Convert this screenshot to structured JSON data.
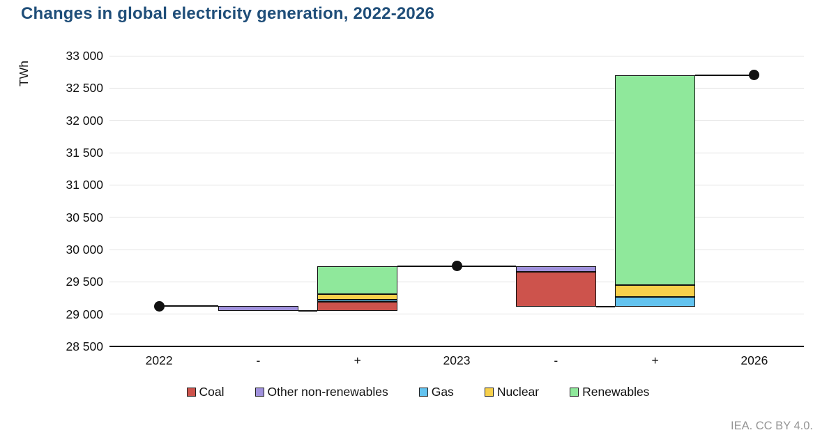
{
  "attribution": "IEA. CC BY 4.0.",
  "colors": {
    "title": "#1f4e79",
    "axis": "#000000",
    "gridline": "#e2e2e2",
    "marker": "#111111",
    "segment_border": "#111111",
    "attribution": "#959595"
  },
  "chart_data": {
    "type": "bar",
    "subtype": "stacked-waterfall",
    "title": "Changes in global electricity generation, 2022-2026",
    "ylabel": "TWh",
    "xlabel": "",
    "ylim": [
      28500,
      33000
    ],
    "ytick_step": 500,
    "grid": true,
    "legend_position": "bottom",
    "yticks": [
      {
        "value": 33000,
        "label": "33 000"
      },
      {
        "value": 32500,
        "label": "32 500"
      },
      {
        "value": 32000,
        "label": "32 000"
      },
      {
        "value": 31500,
        "label": "31 500"
      },
      {
        "value": 31000,
        "label": "31 000"
      },
      {
        "value": 30500,
        "label": "30 500"
      },
      {
        "value": 30000,
        "label": "30 000"
      },
      {
        "value": 29500,
        "label": "29 500"
      },
      {
        "value": 29000,
        "label": "29 000"
      },
      {
        "value": 28500,
        "label": "28 500"
      }
    ],
    "categories": [
      "2022",
      "-",
      "+",
      "2023",
      "-",
      "+",
      "2026"
    ],
    "legend": [
      {
        "label": "Coal",
        "color": "#cd534c"
      },
      {
        "label": "Other non-renewables",
        "color": "#a091dc"
      },
      {
        "label": "Gas",
        "color": "#63c3ef"
      },
      {
        "label": "Nuclear",
        "color": "#f7d04b"
      },
      {
        "label": "Renewables",
        "color": "#8fe89b"
      }
    ],
    "columns": [
      {
        "slot": 0,
        "kind": "total",
        "category": "2022",
        "value": 29125
      },
      {
        "slot": 1,
        "kind": "decrease",
        "start": 29125,
        "segments": [
          {
            "series": "Other non-renewables",
            "value": -75
          }
        ]
      },
      {
        "slot": 2,
        "kind": "increase",
        "start": 29050,
        "segments": [
          {
            "series": "Coal",
            "value": 145
          },
          {
            "series": "Gas",
            "value": 25
          },
          {
            "series": "Nuclear",
            "value": 85
          },
          {
            "series": "Renewables",
            "value": 440
          }
        ]
      },
      {
        "slot": 3,
        "kind": "total",
        "category": "2023",
        "value": 29745
      },
      {
        "slot": 4,
        "kind": "decrease",
        "start": 29745,
        "segments": [
          {
            "series": "Other non-renewables",
            "value": -90
          },
          {
            "series": "Coal",
            "value": -535
          }
        ]
      },
      {
        "slot": 5,
        "kind": "increase",
        "start": 29120,
        "segments": [
          {
            "series": "Gas",
            "value": 145
          },
          {
            "series": "Nuclear",
            "value": 190
          },
          {
            "series": "Renewables",
            "value": 3245
          }
        ]
      },
      {
        "slot": 6,
        "kind": "total",
        "category": "2026",
        "value": 32700
      }
    ],
    "connectors": [
      {
        "level": 29125,
        "from_slot": 0,
        "from_anchor": "center",
        "to_slot": 1,
        "to_anchor": "left"
      },
      {
        "level": 29050,
        "from_slot": 1,
        "from_anchor": "right",
        "to_slot": 2,
        "to_anchor": "left"
      },
      {
        "level": 29745,
        "from_slot": 2,
        "from_anchor": "right",
        "to_slot": 4,
        "to_anchor": "left"
      },
      {
        "level": 29120,
        "from_slot": 4,
        "from_anchor": "right",
        "to_slot": 5,
        "to_anchor": "left"
      },
      {
        "level": 32700,
        "from_slot": 5,
        "from_anchor": "right",
        "to_slot": 6,
        "to_anchor": "center"
      }
    ]
  }
}
